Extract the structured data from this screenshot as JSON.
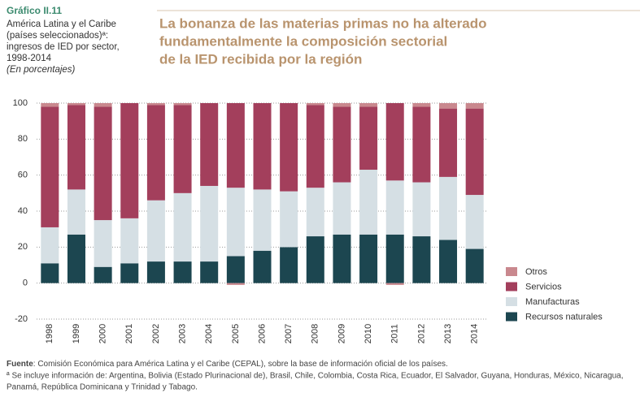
{
  "chart_data": {
    "type": "stacked_bar",
    "label": "Gráfico II.11",
    "subtitle": [
      "América Latina y el Caribe",
      "(países seleccionados)ª:",
      "ingresos de IED por sector,",
      "1998-2014"
    ],
    "unit_note": "(En porcentajes)",
    "title": [
      "La bonanza de las materias primas no ha alterado",
      "fundamentalmente la composición sectorial",
      "de la IED recibida por la región"
    ],
    "categories": [
      "1998",
      "1999",
      "2000",
      "2001",
      "2002",
      "2003",
      "2004",
      "2005",
      "2006",
      "2007",
      "2008",
      "2009",
      "2010",
      "2011",
      "2012",
      "2013",
      "2014"
    ],
    "series": [
      {
        "name": "Recursos naturales",
        "color": "#1c4650",
        "values": [
          11,
          27,
          9,
          11,
          12,
          12,
          12,
          15,
          18,
          20,
          26,
          27,
          27,
          27,
          26,
          24,
          19
        ]
      },
      {
        "name": "Manufacturas",
        "color": "#d5dfe4",
        "values": [
          20,
          25,
          26,
          25,
          34,
          38,
          42,
          38,
          34,
          31,
          27,
          29,
          36,
          30,
          30,
          35,
          30
        ]
      },
      {
        "name": "Servicios",
        "color": "#a33f5c",
        "values": [
          67,
          47,
          63,
          64,
          53,
          49,
          46,
          47,
          48,
          49,
          46,
          42,
          35,
          43,
          42,
          38,
          48
        ]
      },
      {
        "name": "Otros",
        "color": "#c9888e",
        "values": [
          2,
          1,
          2,
          0,
          1,
          1,
          0,
          -1,
          0,
          0,
          1,
          2,
          2,
          -1,
          2,
          3,
          3
        ]
      }
    ],
    "ylim": [
      -20,
      100
    ],
    "yticks": [
      -20,
      0,
      20,
      40,
      60,
      80,
      100
    ],
    "grid": true,
    "legend": "right",
    "source_label": "Fuente",
    "source": ": Comisión Económica para América Latina y el Caribe (CEPAL), sobre la base de información oficial de los países.",
    "notes": [
      "ª Se incluye información de: Argentina, Bolivia (Estado Plurinacional de), Brasil, Chile, Colombia, Costa Rica, Ecuador, El Salvador, Guyana, Honduras, México, Nicaragua,",
      "Panamá, República Dominicana y Trinidad y Tabago."
    ]
  }
}
